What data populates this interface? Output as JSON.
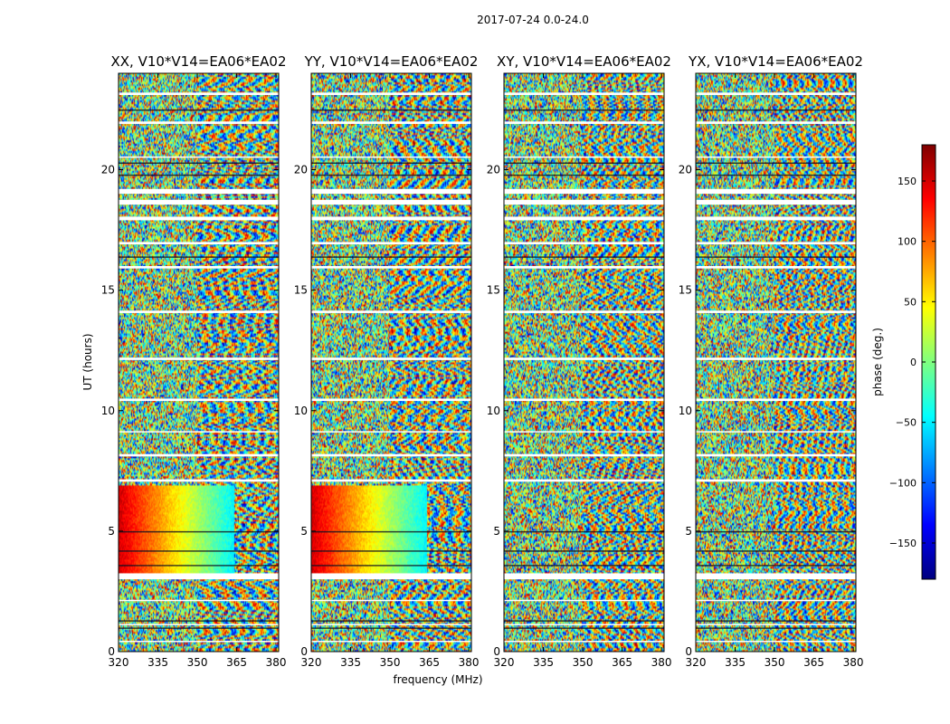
{
  "chart_data": {
    "type": "heatmap",
    "title": "2017-07-24 0.0-24.0",
    "xlabel": "frequency (MHz)",
    "ylabel": "UT (hours)",
    "xlim": [
      320,
      381
    ],
    "ylim": [
      0,
      24
    ],
    "xticks": [
      "320",
      "335",
      "350",
      "365",
      "380"
    ],
    "yticks": [
      "0",
      "5",
      "10",
      "15",
      "20"
    ],
    "panels": [
      {
        "title": "XX, V10*V14=EA06*EA02"
      },
      {
        "title": "YY, V10*V14=EA06*EA02"
      },
      {
        "title": "XY, V10*V14=EA06*EA02"
      },
      {
        "title": "YX, V10*V14=EA06*EA02"
      }
    ],
    "colorbar": {
      "label": "phase (deg.)",
      "range": [
        -180,
        180
      ],
      "ticks": [
        "150",
        "100",
        "50",
        "0",
        "−50",
        "−100",
        "−150"
      ],
      "colormap": "jet"
    },
    "colors": {
      "jet": [
        "#00007f",
        "#0000ff",
        "#007fff",
        "#00ffff",
        "#7fff7f",
        "#ffff00",
        "#ff7f00",
        "#ff0000",
        "#7f0000"
      ]
    },
    "flagged_hours": [
      [
        3.0,
        3.25
      ],
      [
        18.55,
        18.75
      ],
      [
        17.9,
        18.05
      ],
      [
        19.0,
        19.2
      ],
      [
        14.05,
        14.15
      ],
      [
        7.05,
        7.15
      ],
      [
        8.1,
        8.2
      ],
      [
        9.1,
        9.15
      ],
      [
        10.4,
        10.5
      ],
      [
        12.1,
        12.2
      ],
      [
        15.9,
        16.0
      ],
      [
        16.9,
        17.0
      ],
      [
        20.5,
        20.55
      ],
      [
        21.9,
        22.0
      ],
      [
        1.1,
        1.15
      ],
      [
        0.4,
        0.45
      ],
      [
        23.1,
        23.2
      ],
      [
        2.1,
        2.15
      ]
    ]
  }
}
